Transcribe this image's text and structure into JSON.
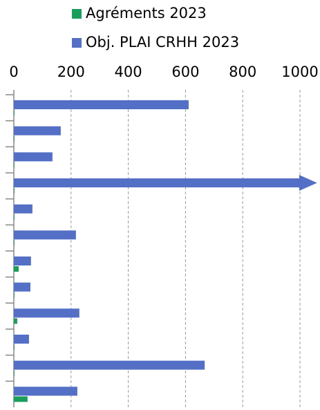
{
  "chart_data": {
    "type": "barh",
    "categories": [
      null,
      null,
      null,
      null,
      null,
      null,
      null,
      null,
      null,
      null,
      null,
      null
    ],
    "series": [
      {
        "name": "Agréments 2023",
        "color": "#1a9e5c",
        "values": [
          2,
          2,
          2,
          2,
          2,
          2,
          17,
          2,
          12,
          2,
          2,
          48
        ]
      },
      {
        "name": "Obj. PLAI CRHH 2023",
        "color": "#5470c6",
        "values": [
          611,
          164,
          135,
          1060,
          65,
          217,
          60,
          58,
          229,
          53,
          667,
          222
        ]
      }
    ],
    "xlim": [
      0,
      1000
    ],
    "xticks": [
      0,
      200,
      400,
      600,
      800,
      1000
    ],
    "grid": true
  }
}
